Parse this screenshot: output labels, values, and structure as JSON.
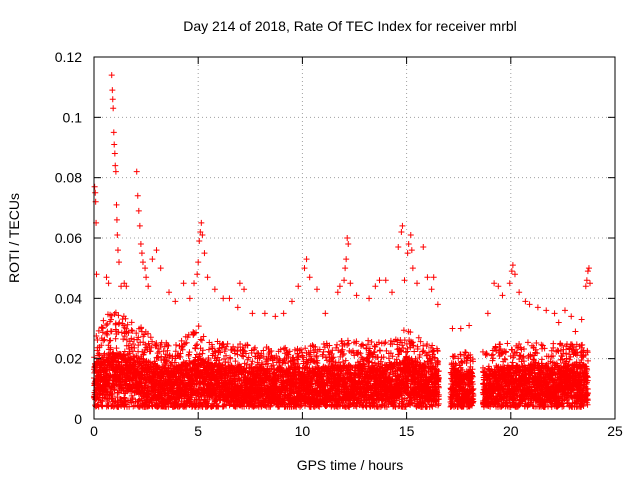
{
  "chart_data": {
    "type": "scatter",
    "title": "Day 214 of 2018, Rate Of TEC Index for receiver mrbl",
    "xlabel": "GPS time / hours",
    "ylabel": "ROTI / TECUs",
    "xlim": [
      0,
      25
    ],
    "ylim": [
      0,
      0.12
    ],
    "x_ticks": [
      0,
      5,
      10,
      15,
      20,
      25
    ],
    "x_tick_labels": [
      "0",
      "5",
      "10",
      "15",
      "20",
      "25"
    ],
    "y_ticks": [
      0,
      0.02,
      0.04,
      0.06,
      0.08,
      0.1,
      0.12
    ],
    "y_tick_labels": [
      "0",
      "0.02",
      "0.04",
      "0.06",
      "0.08",
      "0.1",
      "0.12"
    ],
    "grid": true,
    "marker": "+",
    "color": "#ff0000",
    "data_gaps_hours": [
      [
        16.55,
        17.1
      ],
      [
        18.2,
        18.65
      ]
    ],
    "series": [
      {
        "name": "ROTI",
        "sample_interval_hours": 0.0125,
        "background_profile": [
          [
            0.0,
            0.026,
            0.012
          ],
          [
            0.5,
            0.034,
            0.015
          ],
          [
            1.0,
            0.036,
            0.016
          ],
          [
            2.0,
            0.032,
            0.015
          ],
          [
            3.0,
            0.026,
            0.012
          ],
          [
            4.0,
            0.025,
            0.012
          ],
          [
            5.0,
            0.031,
            0.014
          ],
          [
            6.0,
            0.026,
            0.012
          ],
          [
            8.0,
            0.024,
            0.011
          ],
          [
            10.0,
            0.024,
            0.011
          ],
          [
            12.0,
            0.026,
            0.012
          ],
          [
            14.0,
            0.026,
            0.012
          ],
          [
            15.0,
            0.03,
            0.014
          ],
          [
            16.0,
            0.025,
            0.012
          ],
          [
            18.0,
            0.022,
            0.01
          ],
          [
            20.0,
            0.026,
            0.012
          ],
          [
            22.0,
            0.025,
            0.012
          ],
          [
            23.7,
            0.026,
            0.012
          ]
        ],
        "points": [
          [
            0.03,
            0.077
          ],
          [
            0.06,
            0.075
          ],
          [
            0.08,
            0.072
          ],
          [
            0.1,
            0.065
          ],
          [
            0.12,
            0.048
          ],
          [
            0.85,
            0.114
          ],
          [
            0.88,
            0.109
          ],
          [
            0.9,
            0.106
          ],
          [
            0.92,
            0.103
          ],
          [
            0.95,
            0.095
          ],
          [
            0.97,
            0.091
          ],
          [
            1.0,
            0.088
          ],
          [
            1.02,
            0.084
          ],
          [
            1.05,
            0.082
          ],
          [
            1.08,
            0.071
          ],
          [
            1.1,
            0.066
          ],
          [
            1.12,
            0.061
          ],
          [
            1.15,
            0.056
          ],
          [
            1.2,
            0.052
          ],
          [
            0.6,
            0.047
          ],
          [
            0.7,
            0.045
          ],
          [
            1.3,
            0.044
          ],
          [
            1.45,
            0.045
          ],
          [
            1.55,
            0.044
          ],
          [
            2.05,
            0.082
          ],
          [
            2.1,
            0.074
          ],
          [
            2.15,
            0.069
          ],
          [
            2.2,
            0.064
          ],
          [
            2.25,
            0.058
          ],
          [
            2.3,
            0.055
          ],
          [
            2.35,
            0.052
          ],
          [
            2.45,
            0.05
          ],
          [
            2.5,
            0.047
          ],
          [
            2.6,
            0.044
          ],
          [
            2.8,
            0.053
          ],
          [
            3.0,
            0.056
          ],
          [
            3.2,
            0.05
          ],
          [
            3.6,
            0.042
          ],
          [
            3.9,
            0.039
          ],
          [
            4.3,
            0.045
          ],
          [
            4.6,
            0.04
          ],
          [
            4.8,
            0.045
          ],
          [
            4.95,
            0.048
          ],
          [
            5.0,
            0.052
          ],
          [
            5.05,
            0.059
          ],
          [
            5.1,
            0.062
          ],
          [
            5.15,
            0.065
          ],
          [
            5.2,
            0.061
          ],
          [
            5.3,
            0.055
          ],
          [
            5.45,
            0.047
          ],
          [
            5.8,
            0.043
          ],
          [
            6.2,
            0.04
          ],
          [
            6.5,
            0.04
          ],
          [
            6.9,
            0.037
          ],
          [
            7.0,
            0.045
          ],
          [
            7.2,
            0.043
          ],
          [
            7.6,
            0.035
          ],
          [
            8.2,
            0.035
          ],
          [
            8.7,
            0.034
          ],
          [
            9.1,
            0.035
          ],
          [
            9.5,
            0.039
          ],
          [
            9.8,
            0.044
          ],
          [
            10.1,
            0.05
          ],
          [
            10.2,
            0.053
          ],
          [
            10.35,
            0.047
          ],
          [
            10.7,
            0.043
          ],
          [
            11.1,
            0.035
          ],
          [
            11.7,
            0.042
          ],
          [
            11.8,
            0.044
          ],
          [
            12.0,
            0.046
          ],
          [
            12.05,
            0.05
          ],
          [
            12.1,
            0.053
          ],
          [
            12.15,
            0.06
          ],
          [
            12.2,
            0.058
          ],
          [
            12.3,
            0.045
          ],
          [
            12.6,
            0.041
          ],
          [
            13.2,
            0.04
          ],
          [
            13.5,
            0.044
          ],
          [
            13.7,
            0.046
          ],
          [
            14.0,
            0.046
          ],
          [
            14.3,
            0.042
          ],
          [
            14.6,
            0.057
          ],
          [
            14.75,
            0.062
          ],
          [
            14.8,
            0.064
          ],
          [
            14.9,
            0.046
          ],
          [
            15.05,
            0.055
          ],
          [
            15.1,
            0.058
          ],
          [
            15.2,
            0.061
          ],
          [
            15.25,
            0.056
          ],
          [
            15.3,
            0.05
          ],
          [
            15.5,
            0.045
          ],
          [
            15.8,
            0.057
          ],
          [
            16.0,
            0.047
          ],
          [
            16.2,
            0.043
          ],
          [
            16.3,
            0.047
          ],
          [
            16.5,
            0.038
          ],
          [
            17.2,
            0.03
          ],
          [
            17.6,
            0.03
          ],
          [
            18.0,
            0.031
          ],
          [
            18.9,
            0.035
          ],
          [
            19.2,
            0.045
          ],
          [
            19.4,
            0.044
          ],
          [
            19.6,
            0.041
          ],
          [
            19.95,
            0.045
          ],
          [
            20.05,
            0.049
          ],
          [
            20.1,
            0.051
          ],
          [
            20.2,
            0.048
          ],
          [
            20.4,
            0.042
          ],
          [
            20.7,
            0.039
          ],
          [
            20.9,
            0.038
          ],
          [
            21.3,
            0.037
          ],
          [
            21.7,
            0.036
          ],
          [
            22.1,
            0.035
          ],
          [
            22.3,
            0.032
          ],
          [
            22.6,
            0.036
          ],
          [
            22.9,
            0.034
          ],
          [
            23.1,
            0.029
          ],
          [
            23.4,
            0.033
          ],
          [
            23.6,
            0.044
          ],
          [
            23.65,
            0.046
          ],
          [
            23.7,
            0.049
          ],
          [
            23.75,
            0.05
          ],
          [
            23.8,
            0.045
          ]
        ]
      }
    ]
  }
}
